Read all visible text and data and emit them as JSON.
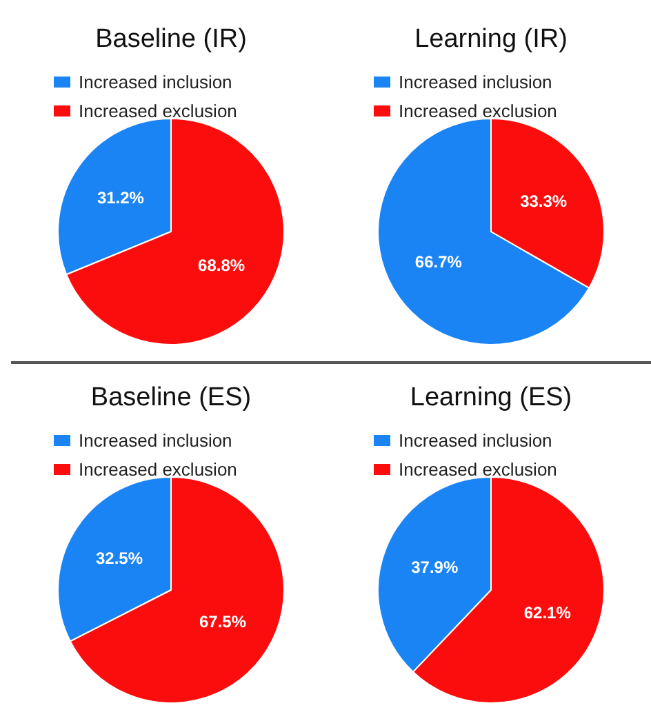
{
  "chart_data": [
    {
      "type": "pie",
      "title": "Baseline (IR)",
      "categories": [
        "Increased inclusion",
        "Increased exclusion"
      ],
      "values": [
        31.2,
        68.8
      ],
      "value_labels": [
        "31.2%",
        "68.8%"
      ],
      "colors": [
        "#1a84f4",
        "#fb0d0d"
      ],
      "legend": "top left"
    },
    {
      "type": "pie",
      "title": "Learning (IR)",
      "categories": [
        "Increased inclusion",
        "Increased exclusion"
      ],
      "values": [
        66.7,
        33.3
      ],
      "value_labels": [
        "66.7%",
        "33.3%"
      ],
      "colors": [
        "#1a84f4",
        "#fb0d0d"
      ],
      "legend": "top left"
    },
    {
      "type": "pie",
      "title": "Baseline (ES)",
      "categories": [
        "Increased inclusion",
        "Increased exclusion"
      ],
      "values": [
        32.5,
        67.5
      ],
      "value_labels": [
        "32.5%",
        "67.5%"
      ],
      "colors": [
        "#1a84f4",
        "#fb0d0d"
      ],
      "legend": "top left"
    },
    {
      "type": "pie",
      "title": "Learning (ES)",
      "categories": [
        "Increased inclusion",
        "Increased exclusion"
      ],
      "values": [
        37.9,
        62.1
      ],
      "value_labels": [
        "37.9%",
        "62.1%"
      ],
      "colors": [
        "#1a84f4",
        "#fb0d0d"
      ],
      "legend": "top left"
    }
  ]
}
